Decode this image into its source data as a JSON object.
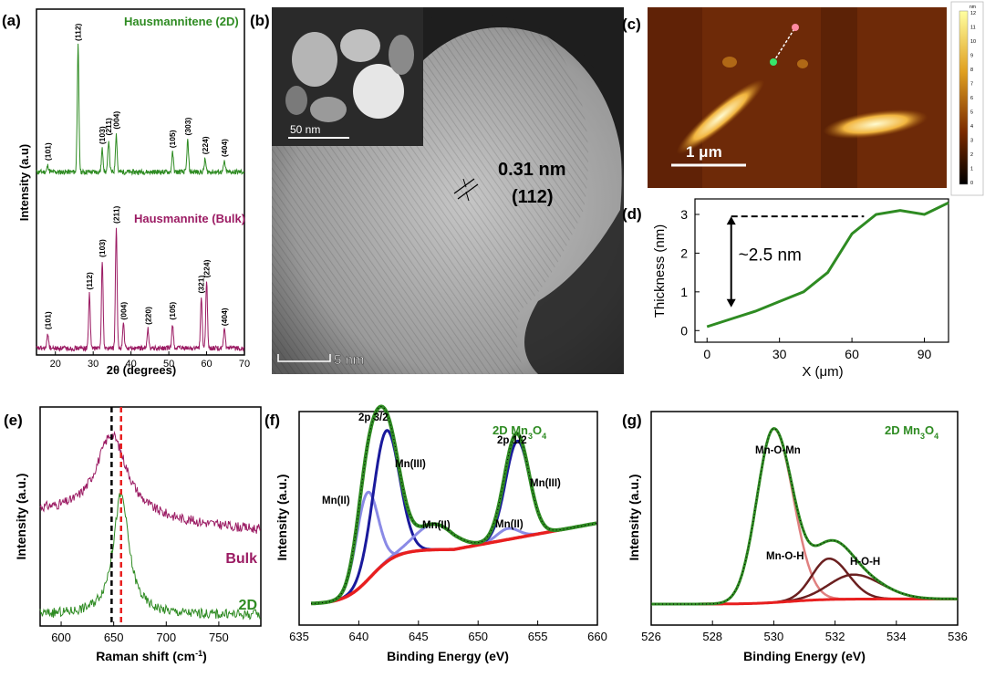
{
  "panel_labels": {
    "a": "(a)",
    "b": "(b)",
    "c": "(c)",
    "d": "(d)",
    "e": "(e)",
    "f": "(f)",
    "g": "(g)"
  },
  "colors": {
    "green": "#2e8b22",
    "magenta": "#9b1b63",
    "blue": "#1a1a9c",
    "lightblue": "#8a8ae6",
    "red": "#e81f1f",
    "brown": "#6b2020",
    "pink": "#e08080",
    "dark": "#111111"
  },
  "chart_data": [
    {
      "id": "a",
      "type": "line",
      "xlabel": "2θ (degrees)",
      "ylabel": "Intensity (a.u)",
      "xlim": [
        15,
        70
      ],
      "xticks": [
        20,
        30,
        40,
        50,
        60,
        70
      ],
      "series": [
        {
          "name": "Hausmannitene (2D)",
          "peaks": [
            {
              "x": 18,
              "label": "(101)",
              "h": 0.05
            },
            {
              "x": 26,
              "label": "(112)",
              "h": 1.0
            },
            {
              "x": 32.4,
              "label": "(103)",
              "h": 0.18
            },
            {
              "x": 34.1,
              "label": "(211)",
              "h": 0.25
            },
            {
              "x": 36.1,
              "label": "(004)",
              "h": 0.3
            },
            {
              "x": 51,
              "label": "(105)",
              "h": 0.15
            },
            {
              "x": 55,
              "label": "(303)",
              "h": 0.25
            },
            {
              "x": 59.6,
              "label": "(224)",
              "h": 0.1
            },
            {
              "x": 64.7,
              "label": "(404)",
              "h": 0.08
            }
          ]
        },
        {
          "name": "Hausmannite (Bulk)",
          "peaks": [
            {
              "x": 18,
              "label": "(101)",
              "h": 0.12
            },
            {
              "x": 29,
              "label": "(112)",
              "h": 0.45
            },
            {
              "x": 32.4,
              "label": "(103)",
              "h": 0.72
            },
            {
              "x": 36.1,
              "label": "(211)",
              "h": 1.0
            },
            {
              "x": 38,
              "label": "(004)",
              "h": 0.2
            },
            {
              "x": 44.5,
              "label": "(220)",
              "h": 0.16
            },
            {
              "x": 51,
              "label": "(105)",
              "h": 0.2
            },
            {
              "x": 58.6,
              "label": "(321)",
              "h": 0.42
            },
            {
              "x": 60,
              "label": "(224)",
              "h": 0.55
            },
            {
              "x": 64.7,
              "label": "(404)",
              "h": 0.15
            }
          ]
        }
      ]
    },
    {
      "id": "d",
      "type": "line",
      "xlabel": "X (μm)",
      "ylabel": "Thickness (nm)",
      "xlim": [
        -5,
        100
      ],
      "ylim": [
        -0.3,
        3.4
      ],
      "xticks": [
        0,
        30,
        60,
        90
      ],
      "yticks": [
        0,
        1,
        2,
        3
      ],
      "x": [
        0,
        10,
        20,
        30,
        40,
        50,
        60,
        70,
        80,
        90,
        100
      ],
      "y": [
        0.1,
        0.3,
        0.5,
        0.75,
        1.0,
        1.5,
        2.5,
        3.0,
        3.1,
        3.0,
        3.3
      ],
      "annotation": "~2.5 nm"
    },
    {
      "id": "e",
      "type": "line",
      "xlabel": "Raman shift (cm-1)",
      "ylabel": "Intensity (a.u.)",
      "xlim": [
        580,
        790
      ],
      "xticks": [
        600,
        650,
        700,
        750
      ],
      "series": [
        {
          "name": "Bulk",
          "center": 648,
          "offset": 0.52,
          "amp": 0.38,
          "width": 18
        },
        {
          "name": "2D",
          "center": 657,
          "offset": 0.05,
          "amp": 0.55,
          "width": 9
        }
      ],
      "vlines": [
        648,
        657
      ]
    },
    {
      "id": "f",
      "type": "line",
      "title": "2D Mn3O4",
      "xlabel": "Binding Energy (eV)",
      "ylabel": "Intensity (a.u.)",
      "xlim": [
        635,
        660
      ],
      "xticks": [
        635,
        640,
        645,
        650,
        655,
        660
      ],
      "series": [
        {
          "name": "Mn(II)",
          "peaks": [
            {
              "c": 640.7,
              "a": 0.48,
              "w": 0.9
            },
            {
              "c": 652.5,
              "a": 0.06,
              "w": 0.9
            }
          ]
        },
        {
          "name": "Mn(III)",
          "peaks": [
            {
              "c": 642.3,
              "a": 0.72,
              "w": 1.1
            },
            {
              "c": 653.3,
              "a": 0.53,
              "w": 1.0
            }
          ]
        },
        {
          "name": "Mn(II) satellite",
          "peaks": [
            {
              "c": 646.3,
              "a": 0.14,
              "w": 1.6
            }
          ]
        }
      ],
      "annotations": [
        "2p 3/2",
        "Mn(III)",
        "Mn(II)",
        "Mn(II)",
        "2p 1/2",
        "Mn(II)",
        "Mn(III)"
      ]
    },
    {
      "id": "g",
      "type": "line",
      "title": "2D Mn3O4",
      "xlabel": "Binding Energy (eV)",
      "ylabel": "Intensity (a.u.)",
      "xlim": [
        526,
        536
      ],
      "xticks": [
        526,
        528,
        530,
        532,
        534,
        536
      ],
      "series": [
        {
          "name": "Mn-O-Mn",
          "c": 530.0,
          "a": 0.85,
          "w": 0.55
        },
        {
          "name": "Mn-O-H",
          "c": 531.8,
          "a": 0.2,
          "w": 0.55
        },
        {
          "name": "H-O-H",
          "c": 532.6,
          "a": 0.12,
          "w": 0.8
        }
      ]
    }
  ],
  "image_b": {
    "inset_scale": "50 nm",
    "scale": "5 nm",
    "spacing": "0.31 nm",
    "plane": "(112)"
  },
  "image_c": {
    "scale": "1 μm",
    "colorbar_ticks": [
      "12",
      "11",
      "10",
      "9",
      "8",
      "7",
      "6",
      "5",
      "4",
      "3",
      "2",
      "1",
      "0"
    ],
    "colorbar_unit": "nm"
  }
}
